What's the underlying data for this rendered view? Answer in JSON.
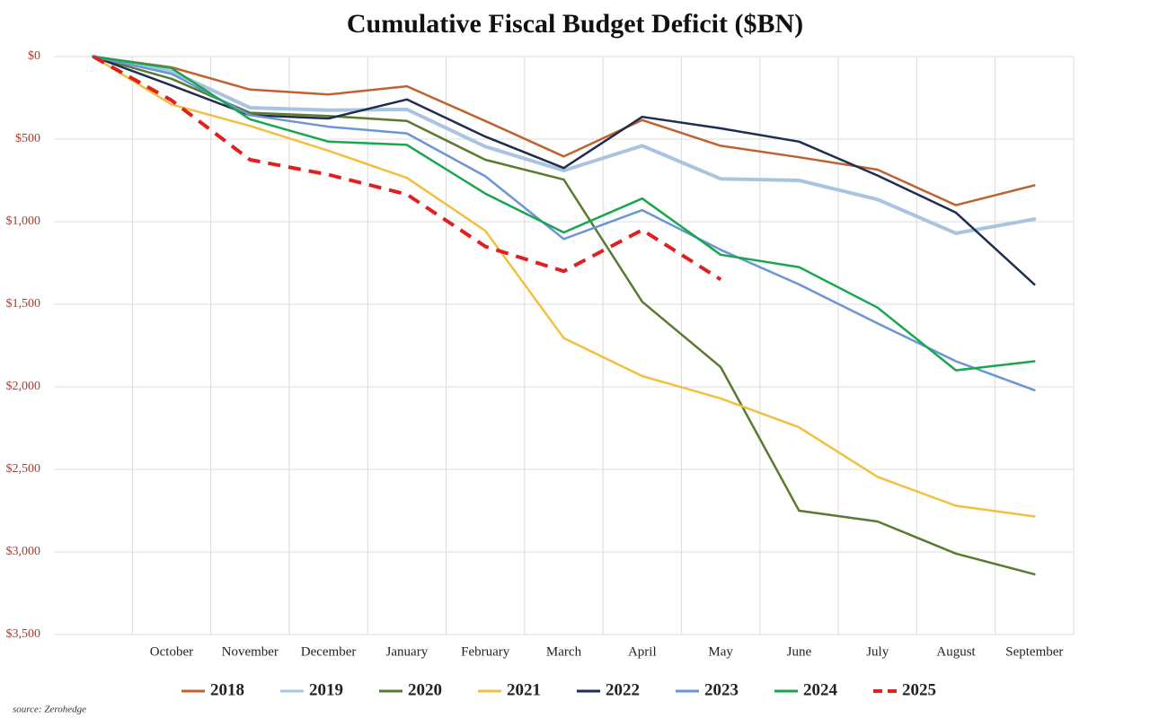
{
  "chart_data": {
    "type": "line",
    "title": "Cumulative Fiscal Budget Deficit ($BN)",
    "source": "source: Zerohedge",
    "categories": [
      null,
      "October",
      "November",
      "December",
      "January",
      "February",
      "March",
      "April",
      "May",
      "June",
      "July",
      "August",
      "September"
    ],
    "ylim": [
      0,
      3500
    ],
    "y_inverted": true,
    "yticks": [
      {
        "value": 0,
        "label": "$0"
      },
      {
        "value": 500,
        "label": "$500"
      },
      {
        "value": 1000,
        "label": "$1,000"
      },
      {
        "value": 1500,
        "label": "$1,500"
      },
      {
        "value": 2000,
        "label": "$2,000"
      },
      {
        "value": 2500,
        "label": "$2,500"
      },
      {
        "value": 3000,
        "label": "$3,000"
      },
      {
        "value": 3500,
        "label": "$3,500"
      }
    ],
    "grid": true,
    "legend": "bottom",
    "series": [
      {
        "name": "2018",
        "color": "#c0622f",
        "values": [
          0,
          65,
          200,
          230,
          180,
          390,
          605,
          385,
          540,
          610,
          685,
          900,
          780
        ]
      },
      {
        "name": "2019",
        "color": "#a9c4e0",
        "width": 4,
        "values": [
          0,
          90,
          310,
          325,
          320,
          545,
          690,
          540,
          740,
          750,
          865,
          1070,
          985
        ]
      },
      {
        "name": "2020",
        "color": "#5a7a30",
        "values": [
          0,
          135,
          340,
          360,
          390,
          625,
          745,
          1485,
          1880,
          2750,
          2815,
          3010,
          3135
        ]
      },
      {
        "name": "2021",
        "color": "#f2c040",
        "values": [
          0,
          290,
          420,
          570,
          735,
          1055,
          1705,
          1935,
          2070,
          2245,
          2545,
          2720,
          2785
        ]
      },
      {
        "name": "2022",
        "color": "#1f2d4e",
        "values": [
          0,
          175,
          355,
          375,
          260,
          485,
          675,
          365,
          435,
          515,
          720,
          945,
          1380
        ]
      },
      {
        "name": "2023",
        "color": "#6a96d4",
        "values": [
          0,
          105,
          355,
          425,
          465,
          725,
          1105,
          930,
          1170,
          1380,
          1615,
          1845,
          2020
        ]
      },
      {
        "name": "2024",
        "color": "#1aa550",
        "values": [
          0,
          70,
          380,
          515,
          535,
          830,
          1065,
          860,
          1200,
          1275,
          1520,
          1900,
          1845
        ]
      },
      {
        "name": "2025",
        "color": "#e02020",
        "dashed": true,
        "width": 4,
        "values": [
          0,
          265,
          625,
          715,
          835,
          1150,
          1300,
          1050,
          1350,
          null,
          null,
          null,
          null
        ]
      }
    ]
  }
}
